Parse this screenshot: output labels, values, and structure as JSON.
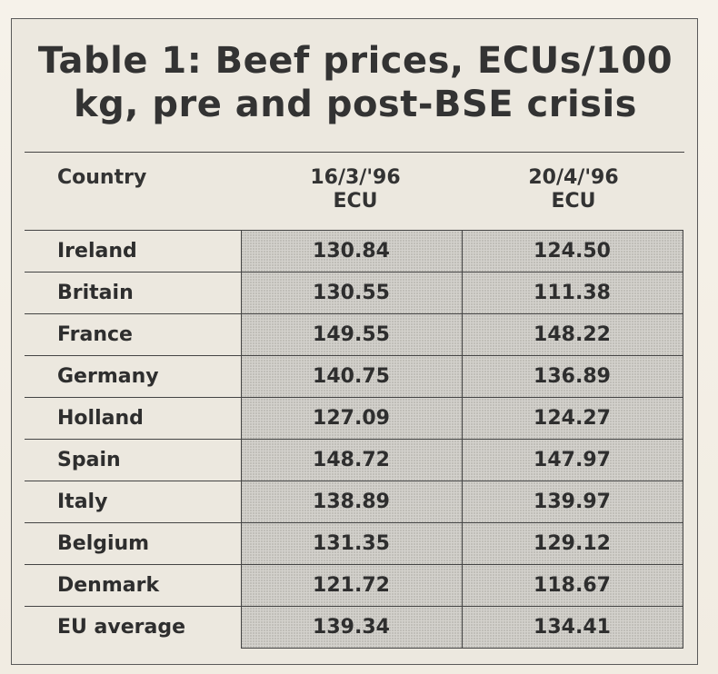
{
  "table": {
    "title": "Table 1: Beef prices, ECUs/100 kg, pre and post-BSE crisis",
    "headers": {
      "country": "Country",
      "col1_date": "16/3/'96",
      "col1_unit": "ECU",
      "col2_date": "20/4/'96",
      "col2_unit": "ECU"
    },
    "rows": [
      {
        "country": "Ireland",
        "pre": "130.84",
        "post": "124.50"
      },
      {
        "country": "Britain",
        "pre": "130.55",
        "post": "111.38"
      },
      {
        "country": "France",
        "pre": "149.55",
        "post": "148.22"
      },
      {
        "country": "Germany",
        "pre": "140.75",
        "post": "136.89"
      },
      {
        "country": "Holland",
        "pre": "127.09",
        "post": "124.27"
      },
      {
        "country": "Spain",
        "pre": "148.72",
        "post": "147.97"
      },
      {
        "country": "Italy",
        "pre": "138.89",
        "post": "139.97"
      },
      {
        "country": "Belgium",
        "pre": "131.35",
        "post": "129.12"
      },
      {
        "country": "Denmark",
        "pre": "121.72",
        "post": "118.67"
      },
      {
        "country": "EU average",
        "pre": "139.34",
        "post": "134.41"
      }
    ]
  }
}
